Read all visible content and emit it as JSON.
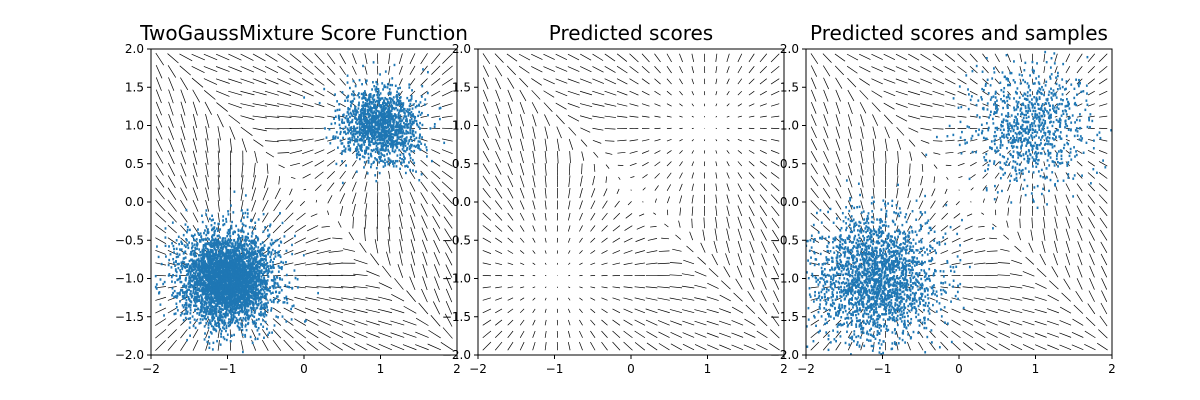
{
  "chart_data": [
    {
      "type": "scatter",
      "title": "TwoGaussMixture Score Function",
      "xlabel": "",
      "ylabel": "",
      "xlim": [
        -2,
        2
      ],
      "ylim": [
        -2,
        2
      ],
      "x_ticks": [
        "−2",
        "−1",
        "0",
        "1",
        "2"
      ],
      "y_ticks": [
        "2.0",
        "1.5",
        "1.0",
        "0.5",
        "0.0",
        "−0.5",
        "−1.0",
        "−1.5",
        "−2.0"
      ],
      "grid": false,
      "quiver": true,
      "point_color": "#1f77b4",
      "clusters": [
        {
          "center": [
            1.0,
            1.0
          ],
          "spread": 0.25,
          "approx_points": 1500
        },
        {
          "center": [
            -1.0,
            -1.0
          ],
          "spread": 0.3,
          "approx_points": 4000
        }
      ]
    },
    {
      "type": "scatter",
      "title": "Predicted scores",
      "xlabel": "",
      "ylabel": "",
      "xlim": [
        -2,
        2
      ],
      "ylim": [
        -2,
        2
      ],
      "x_ticks": [
        "−2",
        "−1",
        "0",
        "1",
        "2"
      ],
      "y_ticks": [
        "2.0",
        "1.5",
        "1.0",
        "0.5",
        "0.0",
        "−0.5",
        "−1.0",
        "−1.5",
        "−2.0"
      ],
      "grid": false,
      "quiver": true,
      "clusters": []
    },
    {
      "type": "scatter",
      "title": "Predicted scores and samples",
      "xlabel": "",
      "ylabel": "",
      "xlim": [
        -2,
        2
      ],
      "ylim": [
        -2,
        2
      ],
      "x_ticks": [
        "−2",
        "−1",
        "0",
        "1",
        "2"
      ],
      "y_ticks": [
        "2.0",
        "1.5",
        "1.0",
        "0.5",
        "0.0",
        "−0.5",
        "−1.0",
        "−1.5",
        "−2.0"
      ],
      "grid": false,
      "quiver": true,
      "point_color": "#1f77b4",
      "clusters": [
        {
          "center": [
            0.9,
            1.0
          ],
          "spread": 0.4,
          "approx_points": 900
        },
        {
          "center": [
            -1.1,
            -1.0
          ],
          "spread": 0.4,
          "approx_points": 2200
        }
      ]
    }
  ]
}
